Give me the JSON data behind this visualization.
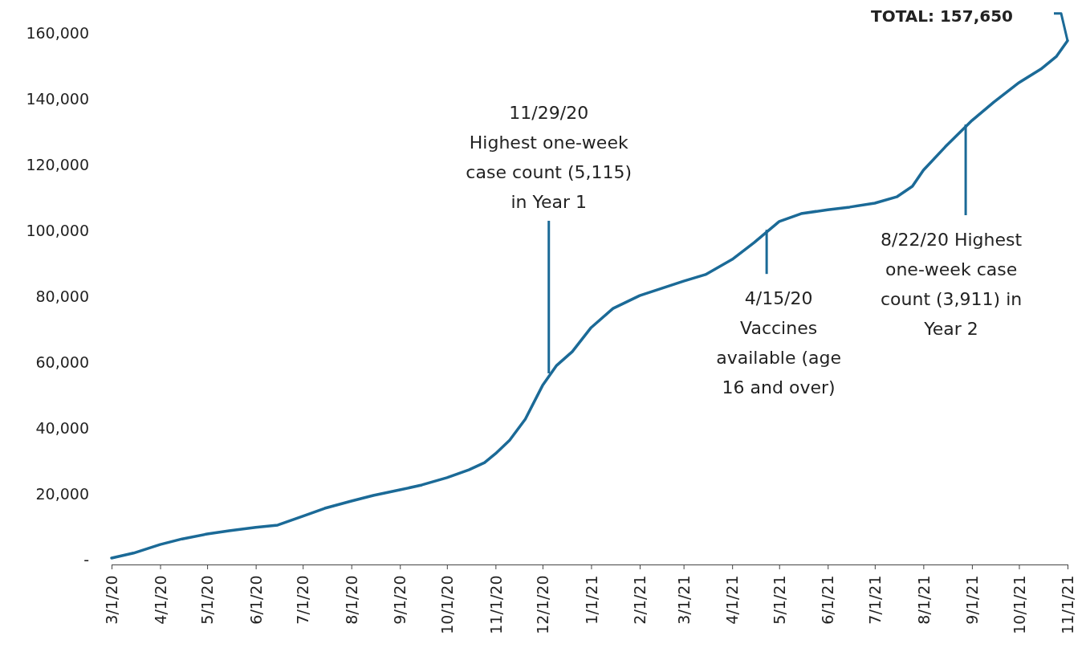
{
  "chart_data": {
    "type": "line",
    "x": [
      "2020-03-01",
      "2020-03-15",
      "2020-04-01",
      "2020-04-15",
      "2020-05-01",
      "2020-05-15",
      "2020-06-01",
      "2020-06-15",
      "2020-07-01",
      "2020-07-15",
      "2020-08-01",
      "2020-08-15",
      "2020-09-01",
      "2020-09-15",
      "2020-10-01",
      "2020-10-15",
      "2020-10-25",
      "2020-11-01",
      "2020-11-10",
      "2020-11-20",
      "2020-12-01",
      "2020-12-10",
      "2020-12-20",
      "2021-01-01",
      "2021-01-15",
      "2021-02-01",
      "2021-02-15",
      "2021-03-01",
      "2021-03-15",
      "2021-04-01",
      "2021-04-15",
      "2021-05-01",
      "2021-05-15",
      "2021-06-01",
      "2021-06-15",
      "2021-07-01",
      "2021-07-15",
      "2021-07-25",
      "2021-08-01",
      "2021-08-15",
      "2021-09-01",
      "2021-09-15",
      "2021-10-01",
      "2021-10-15",
      "2021-10-25",
      "2021-11-01"
    ],
    "series": [
      {
        "color": "#1b6a97",
        "values": [
          500,
          2000,
          4600,
          6300,
          7800,
          8800,
          9800,
          10500,
          13200,
          15600,
          17800,
          19500,
          21200,
          22700,
          24900,
          27300,
          29500,
          32200,
          36300,
          42700,
          52900,
          59000,
          63200,
          70500,
          76300,
          80200,
          82400,
          84600,
          86600,
          91200,
          96300,
          102700,
          105100,
          106300,
          107100,
          108300,
          110200,
          113400,
          118300,
          125400,
          133400,
          139000,
          144900,
          149000,
          152900,
          157650
        ]
      }
    ],
    "xlim": [
      "2020-03-01",
      "2021-11-01"
    ],
    "xticks": [
      {
        "value": "2020-03-01",
        "label": "3/1/20"
      },
      {
        "value": "2020-04-01",
        "label": "4/1/20"
      },
      {
        "value": "2020-05-01",
        "label": "5/1/20"
      },
      {
        "value": "2020-06-01",
        "label": "6/1/20"
      },
      {
        "value": "2020-07-01",
        "label": "7/1/20"
      },
      {
        "value": "2020-08-01",
        "label": "8/1/20"
      },
      {
        "value": "2020-09-01",
        "label": "9/1/20"
      },
      {
        "value": "2020-10-01",
        "label": "10/1/20"
      },
      {
        "value": "2020-11-01",
        "label": "11/1/20"
      },
      {
        "value": "2020-12-01",
        "label": "12/1/20"
      },
      {
        "value": "2021-01-01",
        "label": "1/1/21"
      },
      {
        "value": "2021-02-01",
        "label": "2/1/21"
      },
      {
        "value": "2021-03-01",
        "label": "3/1/21"
      },
      {
        "value": "2021-04-01",
        "label": "4/1/21"
      },
      {
        "value": "2021-05-01",
        "label": "5/1/21"
      },
      {
        "value": "2021-06-01",
        "label": "6/1/21"
      },
      {
        "value": "2021-07-01",
        "label": "7/1/21"
      },
      {
        "value": "2021-08-01",
        "label": "8/1/21"
      },
      {
        "value": "2021-09-01",
        "label": "9/1/21"
      },
      {
        "value": "2021-10-01",
        "label": "10/1/21"
      },
      {
        "value": "2021-11-01",
        "label": "11/1/21"
      }
    ],
    "ylim": [
      0,
      160000
    ],
    "yticks": [
      {
        "value": 0,
        "label": "-"
      },
      {
        "value": 20000,
        "label": "20,000"
      },
      {
        "value": 40000,
        "label": "40,000"
      },
      {
        "value": 60000,
        "label": "60,000"
      },
      {
        "value": 80000,
        "label": "80,000"
      },
      {
        "value": 100000,
        "label": "100,000"
      },
      {
        "value": 120000,
        "label": "120,000"
      },
      {
        "value": 140000,
        "label": "140,000"
      },
      {
        "value": 160000,
        "label": "160,000"
      }
    ],
    "annotations": [
      {
        "text": "11/29/20\nHighest one-week\ncase count (5,115)\nin Year 1",
        "x": "2020-12-05",
        "y": 56600
      },
      {
        "text": "4/15/20\nVaccines\navailable (age\n16 and over)",
        "x": "2021-04-23",
        "y": 100200
      },
      {
        "text": "8/22/20 Highest\none-week case\ncount (3,911) in\nYear 2",
        "x": "2021-08-28",
        "y": 132200
      },
      "TOTAL: 157,650"
    ]
  }
}
